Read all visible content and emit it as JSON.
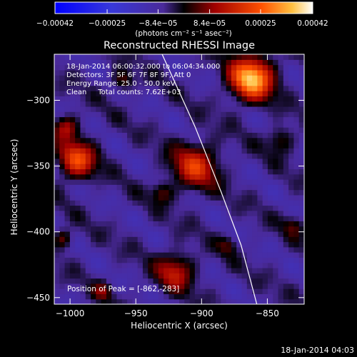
{
  "chart_data": {
    "type": "heatmap",
    "title": "Reconstructed RHESSI Image",
    "xlabel": "Heliocentric X (arcsec)",
    "ylabel": "Heliocentric Y (arcsec)",
    "xlim": [
      -1012,
      -822
    ],
    "ylim": [
      -455,
      -265
    ],
    "x_ticks": [
      -1000,
      -950,
      -900,
      -850
    ],
    "y_ticks": [
      -300,
      -350,
      -400,
      -450
    ],
    "colorbar": {
      "ticks": [
        "-0.00042",
        "-0.00025",
        "-8.4e-05",
        "8.4e-05",
        "0.00025",
        "0.00042"
      ],
      "range": [
        -0.00042,
        0.00042
      ],
      "units": "(photons cm⁻² s⁻¹ asec⁻²)"
    },
    "annotations": [
      "18-Jan-2014 06:00:32.000 to 06:04:34.000",
      "Detectors: 3F 5F 6F 7F 8F 9F, Att 0",
      "Energy Range: 25.0 - 50.0 keV",
      "Clean     Total counts: 7.62E+03"
    ],
    "peak_label": "Position of Peak = [-862,-283]",
    "peak": [
      -862,
      -283
    ],
    "blobs": [
      {
        "x": -862,
        "y": -283,
        "r": 16,
        "value": 0.00042
      },
      {
        "x": -995,
        "y": -345,
        "r": 14,
        "value": 0.00028
      },
      {
        "x": -1003,
        "y": -320,
        "r": 9,
        "value": 0.00018
      },
      {
        "x": -905,
        "y": -350,
        "r": 17,
        "value": 0.00024
      },
      {
        "x": -930,
        "y": -370,
        "r": 8,
        "value": 0.00012
      },
      {
        "x": -920,
        "y": -430,
        "r": 14,
        "value": 0.0002
      },
      {
        "x": -880,
        "y": -410,
        "r": 7,
        "value": 0.0001
      },
      {
        "x": -1005,
        "y": -405,
        "r": 7,
        "value": 0.00014
      },
      {
        "x": -960,
        "y": -285,
        "r": 8,
        "value": 0.00013
      },
      {
        "x": -840,
        "y": -330,
        "r": 10,
        "value": 0.00012
      },
      {
        "x": -830,
        "y": -395,
        "r": 8,
        "value": 0.0001
      },
      {
        "x": -975,
        "y": -445,
        "r": 7,
        "value": 0.00012
      }
    ],
    "limb_curve": [
      [
        -930,
        -265
      ],
      [
        -905,
        -320
      ],
      [
        -885,
        -370
      ],
      [
        -870,
        -410
      ],
      [
        -858,
        -455
      ]
    ]
  },
  "footer_date": "18-Jan-2014 04:03"
}
